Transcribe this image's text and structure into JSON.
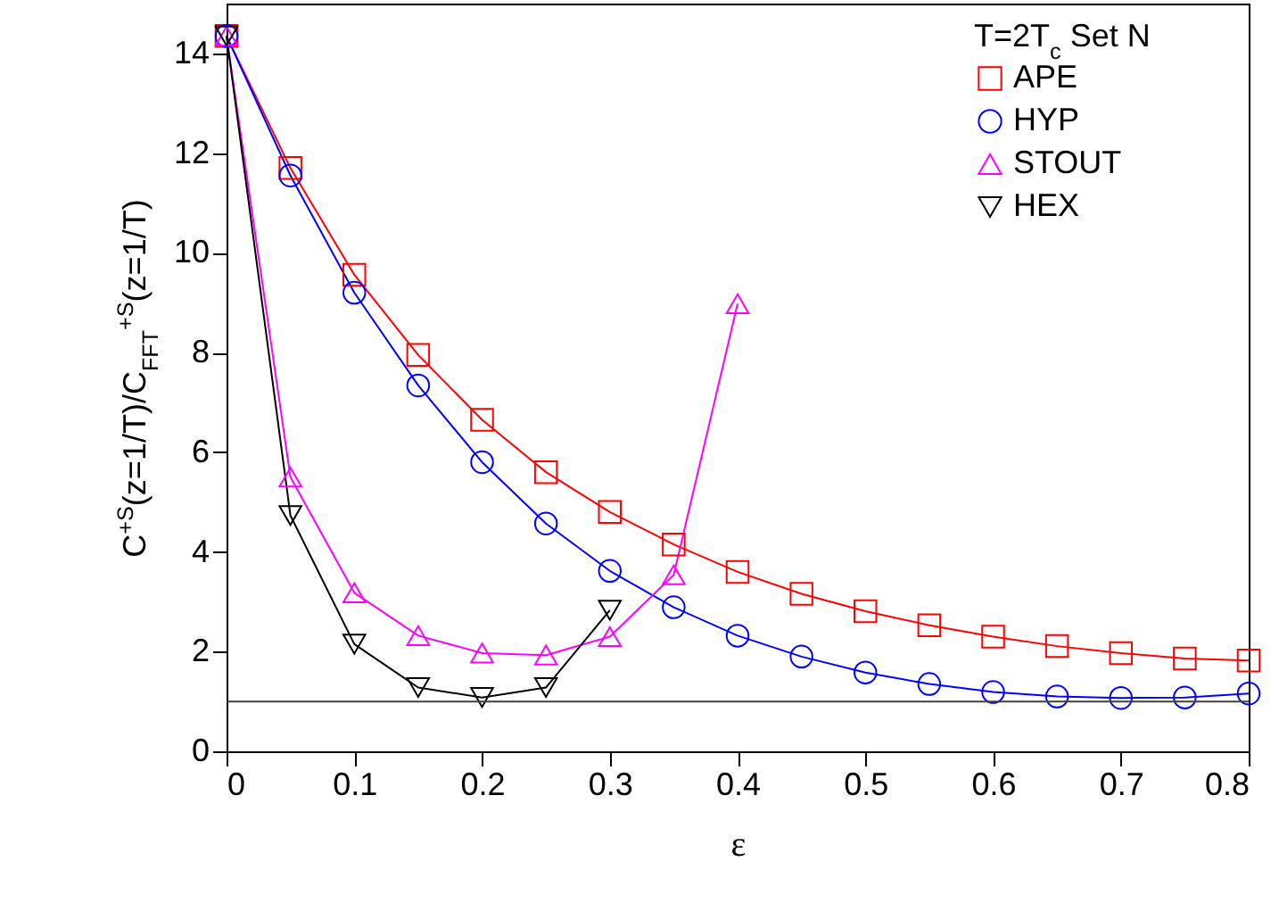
{
  "chart_data": {
    "type": "line",
    "xlabel": "ε",
    "ylabel": "C$^{+S}$(z=1/T)/C$_{FFT}$$^{+S}$(z=1/T)",
    "legend_title": "T=2T$_{c}$ Set N",
    "legend": "top right",
    "x": [
      0,
      0.05,
      0.1,
      0.15,
      0.2,
      0.25,
      0.3,
      0.35,
      0.4,
      0.45,
      0.5,
      0.55,
      0.6,
      0.65,
      0.7,
      0.75,
      0.8
    ],
    "series": [
      {
        "name": "APE",
        "color": "#ff0000",
        "marker": "square",
        "values": [
          14.35,
          11.7,
          9.56,
          7.95,
          6.65,
          5.6,
          4.8,
          4.15,
          3.6,
          3.16,
          2.81,
          2.53,
          2.3,
          2.11,
          1.97,
          1.86,
          1.82
        ]
      },
      {
        "name": "HYP",
        "color": "#0000ff",
        "marker": "circle",
        "values": [
          14.35,
          11.55,
          9.2,
          7.34,
          5.8,
          4.57,
          3.62,
          2.89,
          2.32,
          1.9,
          1.58,
          1.35,
          1.19,
          1.1,
          1.07,
          1.08,
          1.16
        ]
      },
      {
        "name": "STOUT",
        "color": "#ff00ff",
        "marker": "triangle",
        "x": [
          0,
          0.05,
          0.1,
          0.15,
          0.2,
          0.25,
          0.3,
          0.35,
          0.4
        ],
        "values": [
          14.35,
          5.5,
          3.18,
          2.32,
          1.97,
          1.93,
          2.3,
          3.54,
          8.98
        ]
      },
      {
        "name": "HEX",
        "color": "#000000",
        "marker": "triangle-down",
        "x": [
          0,
          0.05,
          0.1,
          0.15,
          0.2,
          0.25,
          0.3
        ],
        "values": [
          14.35,
          4.73,
          2.15,
          1.28,
          1.08,
          1.28,
          2.83
        ]
      }
    ],
    "ref_lines": [
      {
        "axis": "y",
        "value": 1,
        "color": "#404040"
      }
    ],
    "xlim": [
      0,
      0.8
    ],
    "xticks": [
      0,
      0.1,
      0.2,
      0.3,
      0.4,
      0.5,
      0.6,
      0.7,
      0.8
    ],
    "ylim": [
      0,
      15
    ],
    "yticks": [
      0,
      2,
      4,
      6,
      8,
      10,
      12,
      14
    ],
    "grid": false
  }
}
